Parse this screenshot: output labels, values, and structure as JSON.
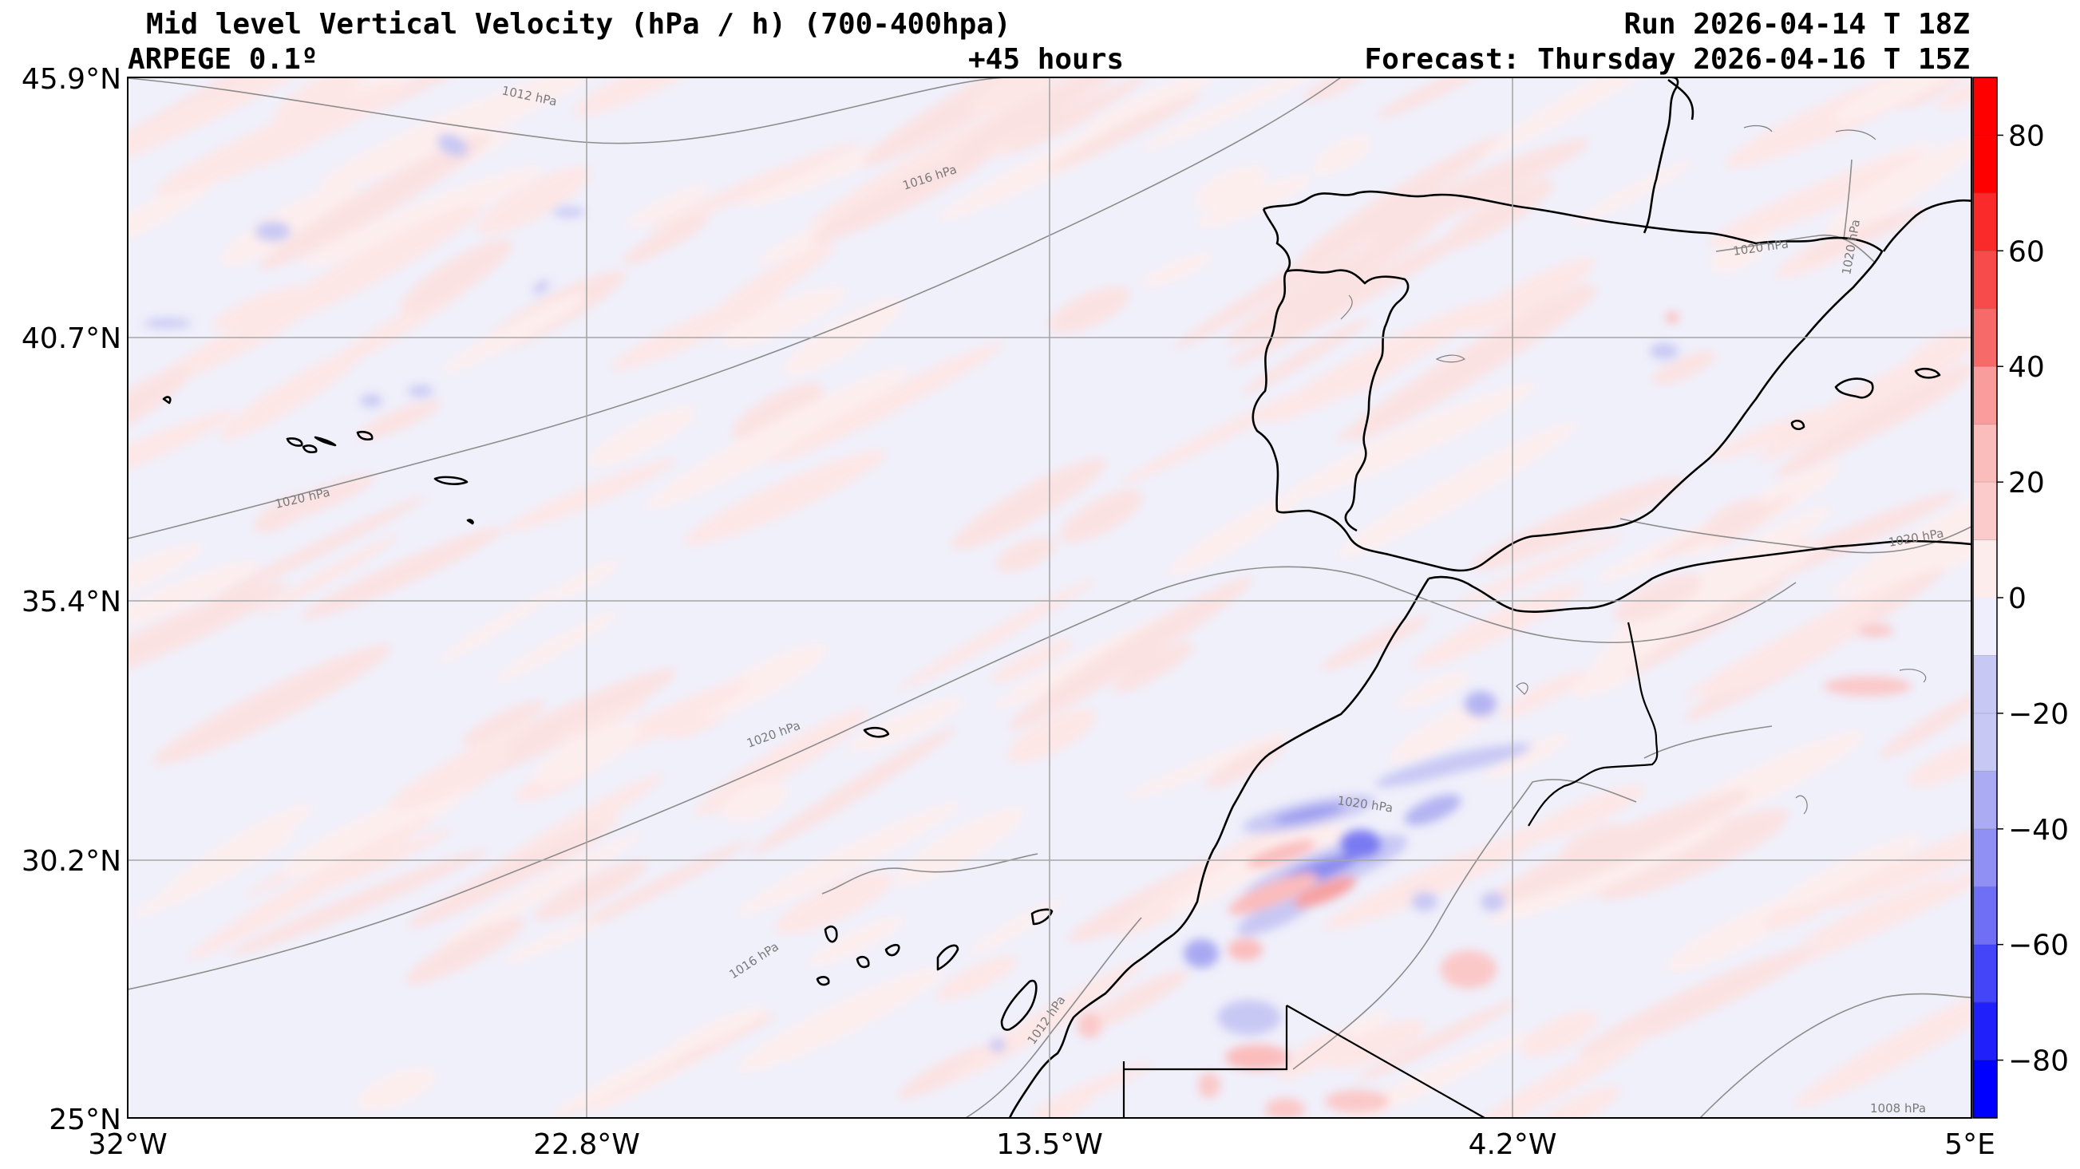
{
  "header": {
    "title": "Mid level Vertical Velocity (hPa / h)  (700-400hpa)",
    "model": "ARPEGE 0.1º",
    "lead_time": "+45 hours",
    "run": "Run 2026-04-14 T 18Z",
    "forecast": "Forecast: Thursday 2026-04-16 T 15Z"
  },
  "map": {
    "lon_range": [
      -32,
      5
    ],
    "lat_range": [
      25,
      45.9
    ],
    "lat_labels": [
      "45.9°N",
      "40.7°N",
      "35.4°N",
      "30.2°N",
      "25°N"
    ],
    "lon_labels": [
      "32°W",
      "22.8°W",
      "13.5°W",
      "4.2°W",
      "5°E"
    ],
    "grid": true,
    "isobar_labels": [
      "1012 hPa",
      "1016 hPa",
      "1020 hPa",
      "1020 hPa",
      "1020 hPa",
      "1020 hPa",
      "1020 hPa",
      "1020 hPa",
      "1016 hPa",
      "1012 hPa",
      "1008 hPa"
    ]
  },
  "colorbar": {
    "ticks": [
      "80",
      "60",
      "40",
      "20",
      "0",
      "−20",
      "−40",
      "−60",
      "−80"
    ],
    "range": [
      -90,
      90
    ],
    "levels": [
      -90,
      -80,
      -70,
      -60,
      -50,
      -40,
      -30,
      -20,
      -10,
      10,
      20,
      30,
      40,
      50,
      60,
      70,
      80,
      90
    ],
    "colors": {
      "neg_strong": "#0000ff",
      "neg_mid": "#6f6ff5",
      "neg_light": "#c8c8f4",
      "neutral_neg": "#eeeefc",
      "neutral_pos": "#fdecec",
      "pos_light": "#fbbcbc",
      "pos_mid": "#f76a6a",
      "pos_strong": "#ff0000"
    }
  }
}
